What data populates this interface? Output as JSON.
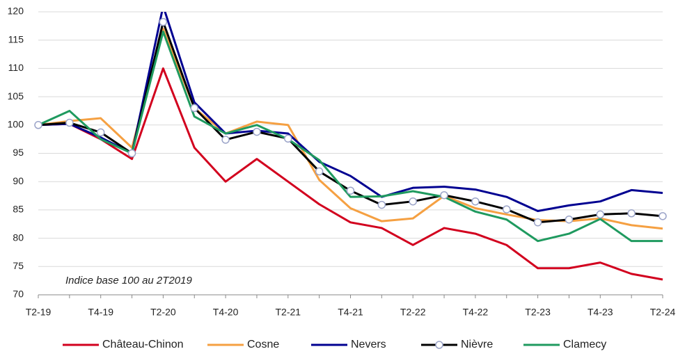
{
  "chart_data": {
    "type": "line",
    "annotation": "Indice base 100 au 2T2019",
    "categories": [
      "T2-19",
      null,
      "T4-19",
      null,
      "T2-20",
      null,
      "T4-20",
      null,
      "T2-21",
      null,
      "T4-21",
      null,
      "T2-22",
      null,
      "T4-22",
      null,
      "T2-23",
      null,
      "T4-23",
      null,
      "T2-24"
    ],
    "ylim": [
      70,
      120
    ],
    "yticks": [
      70,
      75,
      80,
      85,
      90,
      95,
      100,
      105,
      110,
      115,
      120
    ],
    "grid": true,
    "legend": "bottom",
    "series": [
      {
        "name": "Château-Chinon",
        "color": "#d2001e",
        "values": [
          100,
          100.2,
          97.5,
          94,
          110,
          96,
          90,
          94,
          90,
          86,
          82.8,
          81.8,
          78.8,
          81.8,
          80.8,
          78.8,
          74.7,
          74.7,
          75.7,
          73.7,
          72.7
        ]
      },
      {
        "name": "Cosne",
        "color": "#f5a042",
        "values": [
          100,
          100.7,
          101.2,
          96,
          117,
          103,
          98.5,
          100.6,
          100,
          90.3,
          85.3,
          83,
          83.5,
          87.5,
          85.3,
          84.2,
          83.2,
          83,
          83.5,
          82.3,
          81.7
        ]
      },
      {
        "name": "Nevers",
        "color": "#000091",
        "values": [
          100,
          100.2,
          97.8,
          95,
          121,
          104,
          98.5,
          99,
          98.5,
          93.5,
          91,
          87.3,
          88.9,
          89.1,
          88.6,
          87.3,
          84.8,
          85.8,
          86.5,
          88.5,
          88
        ]
      },
      {
        "name": "Nièvre",
        "color": "#000000",
        "markers": true,
        "values": [
          100,
          100.4,
          98.7,
          95,
          118.2,
          103,
          97.4,
          98.8,
          97.6,
          91.8,
          88.4,
          85.9,
          86.5,
          87.6,
          86.5,
          85.1,
          82.8,
          83.3,
          84.2,
          84.4,
          83.9
        ]
      },
      {
        "name": "Clamecy",
        "color": "#1f9a5f",
        "values": [
          100,
          102.5,
          97.5,
          95,
          116.5,
          101.5,
          98.5,
          100,
          97.5,
          93.8,
          87.3,
          87.4,
          88.3,
          87.3,
          84.7,
          83.3,
          79.5,
          80.8,
          83.4,
          79.5,
          79.5
        ]
      }
    ]
  }
}
